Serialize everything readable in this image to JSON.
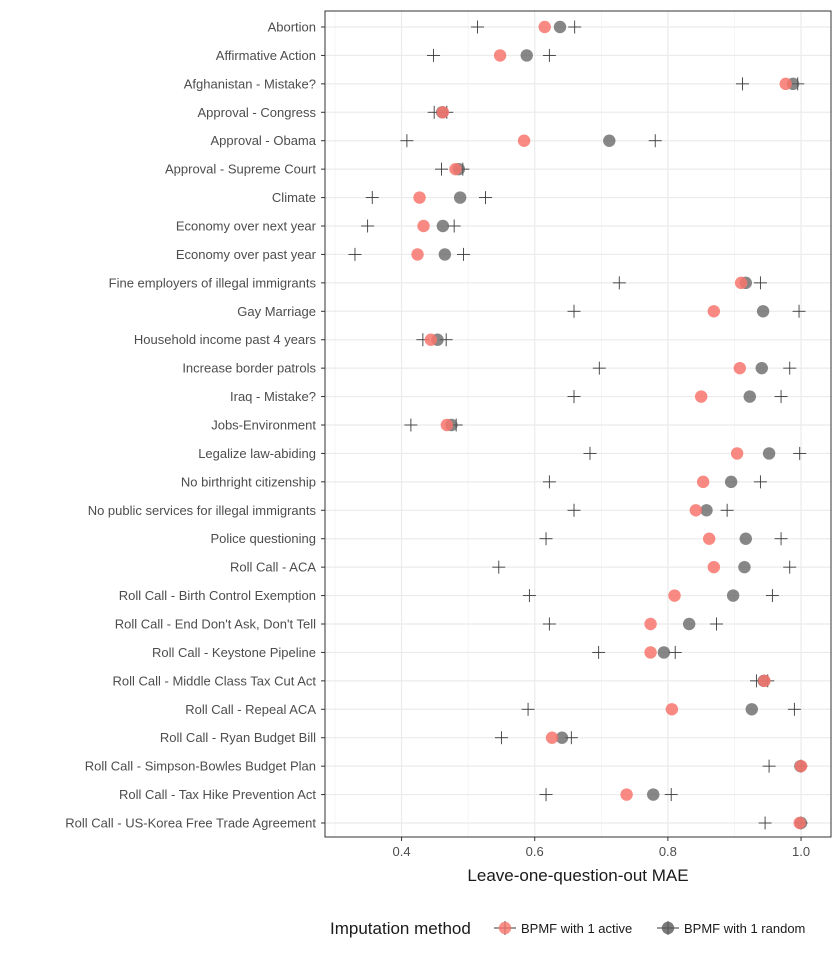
{
  "chart_data": {
    "type": "scatter",
    "title": "",
    "xlabel": "Leave-one-question-out MAE",
    "ylabel": "",
    "xlim": [
      0.285,
      1.045
    ],
    "xticks": [
      0.4,
      0.6,
      0.8,
      1.0
    ],
    "xtick_labels": [
      "0.4",
      "0.6",
      "0.8",
      "1.0"
    ],
    "legend": {
      "title": "Imputation method",
      "position": "bottom",
      "entries": [
        {
          "name": "BPMF with 1 active",
          "color": "#f8766d"
        },
        {
          "name": "BPMF with 1 random",
          "color": "#595959"
        }
      ]
    },
    "questions": [
      "Abortion",
      "Affirmative Action",
      "Afghanistan - Mistake?",
      "Approval - Congress",
      "Approval - Obama",
      "Approval - Supreme Court",
      "Climate",
      "Economy over next year",
      "Economy over past year",
      "Fine employers of illegal immigrants",
      "Gay Marriage",
      "Household income past 4 years",
      "Increase border patrols",
      "Iraq - Mistake?",
      "Jobs-Environment",
      "Legalize law-abiding",
      "No birthright citizenship",
      "No public services for illegal immigrants",
      "Police questioning",
      "Roll Call - ACA",
      "Roll Call - Birth Control Exemption",
      "Roll Call - End Don't Ask, Don't Tell",
      "Roll Call - Keystone Pipeline",
      "Roll Call - Middle Class Tax Cut Act",
      "Roll Call - Repeal ACA",
      "Roll Call - Ryan Budget Bill",
      "Roll Call - Simpson-Bowles Budget Plan",
      "Roll Call - Tax Hike Prevention Act",
      "Roll Call - US-Korea Free Trade Agreement"
    ],
    "series": [
      {
        "name": "BPMF with 1 active",
        "color": "#f8766d",
        "values": [
          0.615,
          0.548,
          0.977,
          0.462,
          0.584,
          0.481,
          0.427,
          0.433,
          0.424,
          0.91,
          0.869,
          0.444,
          0.908,
          0.85,
          0.468,
          0.904,
          0.853,
          0.842,
          0.862,
          0.869,
          0.81,
          0.774,
          0.774,
          0.945,
          0.806,
          0.626,
          1.0,
          0.738,
          0.998
        ]
      },
      {
        "name": "BPMF with 1 random",
        "color": "#595959",
        "values": [
          0.638,
          0.588,
          0.988,
          0.461,
          0.712,
          0.486,
          0.488,
          0.462,
          0.465,
          0.917,
          0.943,
          0.454,
          0.941,
          0.923,
          0.475,
          0.952,
          0.895,
          0.858,
          0.917,
          0.915,
          0.898,
          0.832,
          0.794,
          0.944,
          0.926,
          0.641,
          0.999,
          0.778,
          1.0
        ]
      }
    ],
    "crosses": [
      [
        0.514,
        0.66
      ],
      [
        0.448,
        0.622
      ],
      [
        0.912,
        0.995
      ],
      [
        0.449,
        0.468
      ],
      [
        0.408,
        0.781
      ],
      [
        0.46,
        0.492
      ],
      [
        0.356,
        0.526
      ],
      [
        0.349,
        0.479
      ],
      [
        0.33,
        0.493
      ],
      [
        0.727,
        0.939
      ],
      [
        0.659,
        0.997
      ],
      [
        0.432,
        0.467
      ],
      [
        0.697,
        0.983
      ],
      [
        0.659,
        0.97
      ],
      [
        0.414,
        0.482
      ],
      [
        0.683,
        0.998
      ],
      [
        0.622,
        0.939
      ],
      [
        0.659,
        0.889
      ],
      [
        0.617,
        0.97
      ],
      [
        0.546,
        0.983
      ],
      [
        0.592,
        0.957
      ],
      [
        0.622,
        0.873
      ],
      [
        0.696,
        0.811
      ],
      [
        0.933,
        0.95
      ],
      [
        0.59,
        0.99
      ],
      [
        0.55,
        0.655
      ],
      [
        0.952,
        1.0
      ],
      [
        0.617,
        0.805
      ],
      [
        0.946,
        1.0
      ]
    ]
  }
}
